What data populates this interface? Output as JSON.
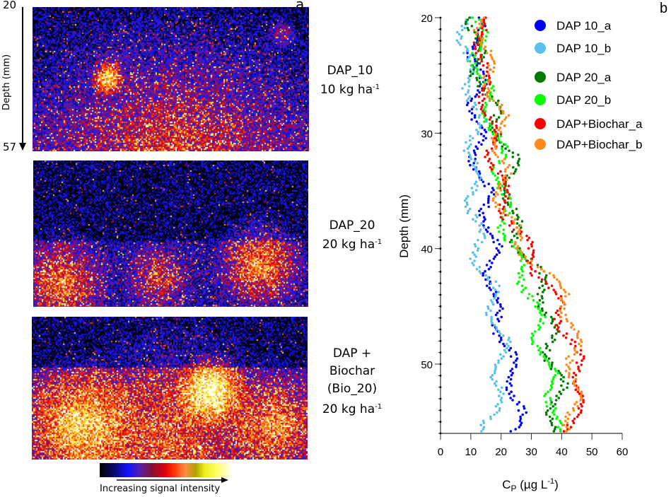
{
  "panel_a": {
    "letter": "a",
    "depth_axis": {
      "label": "Depth (mm)",
      "top": "20",
      "bottom": "57"
    },
    "images": [
      {
        "name": "DAP_10",
        "lines": [
          "DAP_10"
        ],
        "rate": "10 kg ha",
        "rate_sup": "-1"
      },
      {
        "name": "DAP_20",
        "lines": [
          "DAP_20"
        ],
        "rate": "20 kg ha",
        "rate_sup": "-1"
      },
      {
        "name": "Bio_20",
        "lines": [
          "DAP +",
          "Biochar",
          "(Bio_20)"
        ],
        "rate": "20 kg ha",
        "rate_sup": "-1"
      }
    ],
    "colorbar": {
      "caption": "Increasing signal intensity",
      "colors": [
        "#000000",
        "#0a0a7a",
        "#1010ff",
        "#5020b0",
        "#e00010",
        "#ff8c40",
        "#f0f020",
        "#fffff0"
      ]
    }
  },
  "chart_data": {
    "type": "scatter",
    "panel_letter": "b",
    "title": "",
    "xlabel": "C",
    "xlabel_sub": "P",
    "xlabel_rest": " (µg L",
    "xlabel_sup": "-1",
    "xlabel_end": ")",
    "ylabel": "Depth (mm)",
    "xlim": [
      0,
      60
    ],
    "ylim": [
      20,
      56
    ],
    "y_inverted": true,
    "xticks": [
      "0",
      "10",
      "20",
      "30",
      "40",
      "50",
      "60"
    ],
    "yticks": [
      "20",
      "30",
      "40",
      "50"
    ],
    "grid": false,
    "legend_position": "top-right",
    "series": [
      {
        "name": "DAP 10_a",
        "color": "#0000ff",
        "depth": [
          20,
          24,
          28,
          32,
          36,
          40,
          44,
          48,
          52,
          56
        ],
        "cp": [
          12,
          12,
          12,
          12,
          15,
          17,
          17,
          21,
          25,
          25
        ]
      },
      {
        "name": "DAP 10_b",
        "color": "#5bc0eb",
        "depth": [
          20,
          24,
          28,
          32,
          36,
          40,
          44,
          48,
          52,
          56
        ],
        "cp": [
          9,
          8,
          12,
          11,
          11,
          12,
          17,
          20,
          19,
          16
        ]
      },
      {
        "name": "DAP 20_a",
        "color": "#007a00",
        "depth": [
          20,
          24,
          28,
          32,
          36,
          40,
          44,
          48,
          52,
          56
        ],
        "cp": [
          11,
          12,
          17,
          23,
          22,
          27,
          35,
          36,
          39,
          37
        ]
      },
      {
        "name": "DAP 20_b",
        "color": "#00ff00",
        "depth": [
          20,
          24,
          28,
          32,
          36,
          40,
          44,
          48,
          52,
          56
        ],
        "cp": [
          12,
          13,
          16,
          20,
          20,
          24,
          30,
          33,
          37,
          38
        ]
      },
      {
        "name": "DAP+Biochar_a",
        "color": "#ff0000",
        "depth": [
          20,
          24,
          28,
          32,
          36,
          40,
          44,
          48,
          52,
          56
        ],
        "cp": [
          13,
          14,
          16,
          18,
          21,
          28,
          37,
          43,
          47,
          42
        ]
      },
      {
        "name": "DAP+Biochar_b",
        "color": "#ff8a1c",
        "depth": [
          20,
          24,
          28,
          32,
          36,
          40,
          44,
          48,
          52,
          56
        ],
        "cp": [
          14,
          15,
          19,
          20,
          20,
          27,
          41,
          44,
          44,
          44
        ]
      }
    ]
  }
}
